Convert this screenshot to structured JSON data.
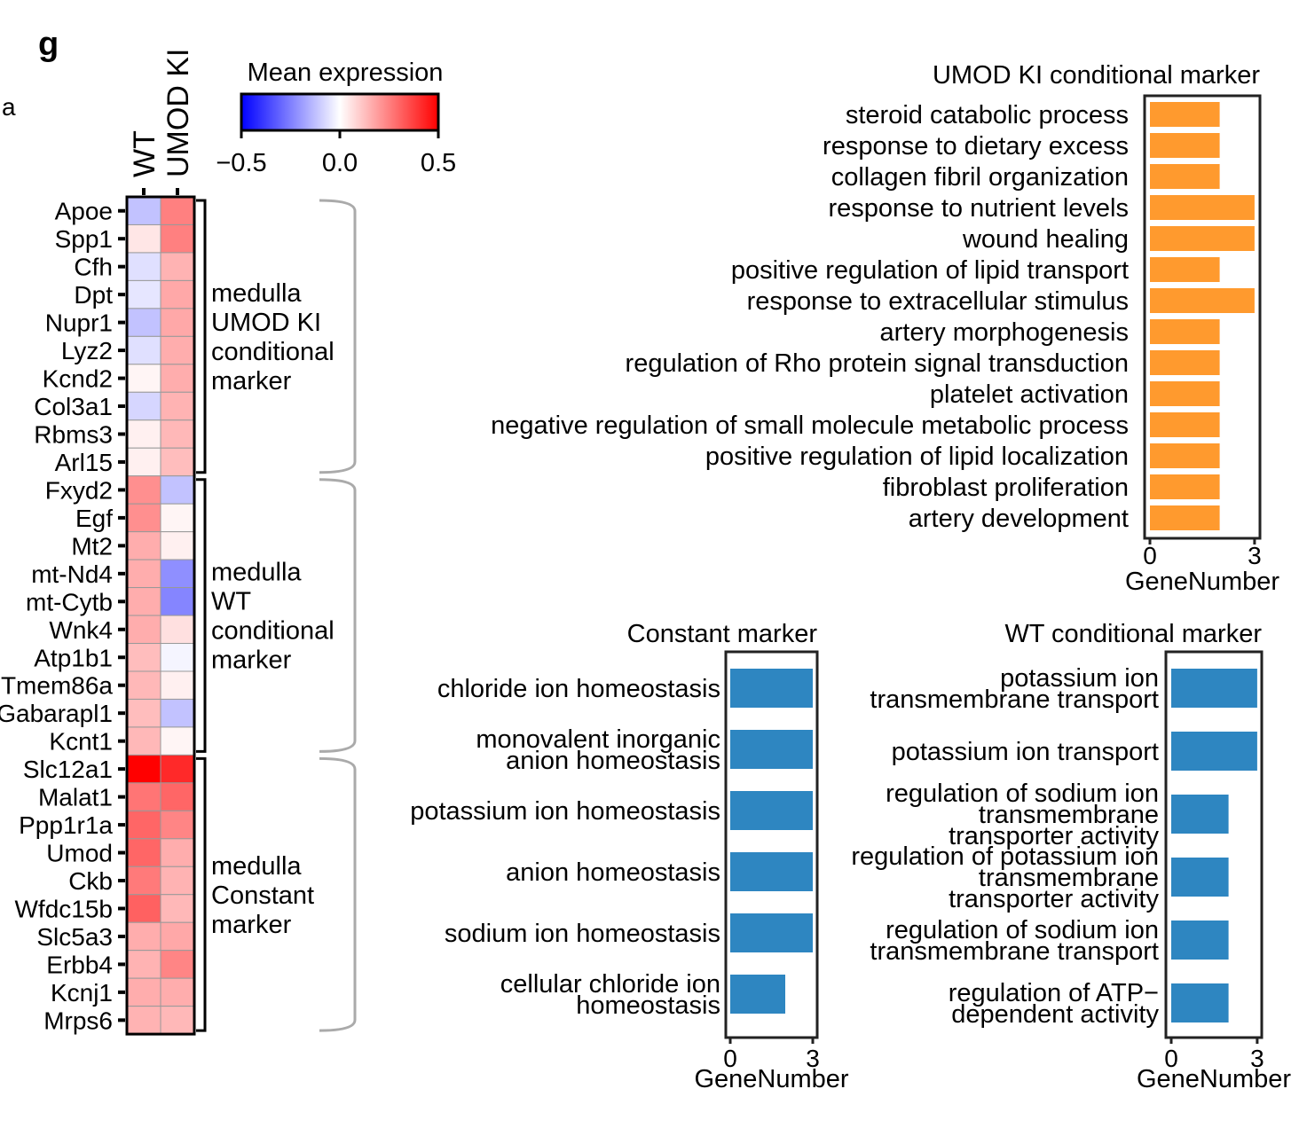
{
  "panel_letter": "g",
  "cut_text": "a",
  "chart_data": [
    {
      "type": "heatmap",
      "columns": [
        "WT",
        "UMOD KI"
      ],
      "colorbar": {
        "title": "Mean expression",
        "range": [
          -0.5,
          0.5
        ],
        "ticks": [
          "−0.5",
          "0.0",
          "0.5"
        ],
        "colors": [
          "#0000ff",
          "#ffffff",
          "#ff0000"
        ]
      },
      "rows": [
        {
          "gene": "Apoe",
          "values": [
            -0.12,
            0.25
          ]
        },
        {
          "gene": "Spp1",
          "values": [
            0.05,
            0.25
          ]
        },
        {
          "gene": "Cfh",
          "values": [
            -0.06,
            0.15
          ]
        },
        {
          "gene": "Dpt",
          "values": [
            -0.05,
            0.17
          ]
        },
        {
          "gene": "Nupr1",
          "values": [
            -0.12,
            0.17
          ]
        },
        {
          "gene": "Lyz2",
          "values": [
            -0.06,
            0.16
          ]
        },
        {
          "gene": "Kcnd2",
          "values": [
            0.02,
            0.16
          ]
        },
        {
          "gene": "Col3a1",
          "values": [
            -0.08,
            0.15
          ]
        },
        {
          "gene": "Rbms3",
          "values": [
            0.03,
            0.14
          ]
        },
        {
          "gene": "Arl15",
          "values": [
            0.03,
            0.13
          ]
        },
        {
          "gene": "Fxyd2",
          "values": [
            0.22,
            -0.12
          ]
        },
        {
          "gene": "Egf",
          "values": [
            0.22,
            0.02
          ]
        },
        {
          "gene": "Mt2",
          "values": [
            0.16,
            0.03
          ]
        },
        {
          "gene": "mt-Nd4",
          "values": [
            0.16,
            -0.22
          ]
        },
        {
          "gene": "mt-Cytb",
          "values": [
            0.16,
            -0.24
          ]
        },
        {
          "gene": "Wnk4",
          "values": [
            0.16,
            0.06
          ]
        },
        {
          "gene": "Atp1b1",
          "values": [
            0.13,
            -0.02
          ]
        },
        {
          "gene": "Tmem86a",
          "values": [
            0.14,
            0.03
          ]
        },
        {
          "gene": "Gabarapl1",
          "values": [
            0.13,
            -0.12
          ]
        },
        {
          "gene": "Kcnt1",
          "values": [
            0.14,
            0.02
          ]
        },
        {
          "gene": "Slc12a1",
          "values": [
            0.5,
            0.42
          ]
        },
        {
          "gene": "Malat1",
          "values": [
            0.27,
            0.3
          ]
        },
        {
          "gene": "Ppp1r1a",
          "values": [
            0.3,
            0.24
          ]
        },
        {
          "gene": "Umod",
          "values": [
            0.3,
            0.16
          ]
        },
        {
          "gene": "Ckb",
          "values": [
            0.26,
            0.15
          ]
        },
        {
          "gene": "Wfdc15b",
          "values": [
            0.31,
            0.14
          ]
        },
        {
          "gene": "Slc5a3",
          "values": [
            0.16,
            0.17
          ]
        },
        {
          "gene": "Erbb4",
          "values": [
            0.15,
            0.24
          ]
        },
        {
          "gene": "Kcnj1",
          "values": [
            0.16,
            0.16
          ]
        },
        {
          "gene": "Mrps6",
          "values": [
            0.15,
            0.14
          ]
        }
      ],
      "groups": [
        {
          "lines": [
            "medulla",
            "UMOD KI",
            "conditional",
            "marker"
          ],
          "rows": 10
        },
        {
          "lines": [
            "medulla",
            "WT",
            "conditional",
            "marker"
          ],
          "rows": 10
        },
        {
          "lines": [
            "medulla",
            "Constant",
            "marker"
          ],
          "rows": 10
        }
      ]
    },
    {
      "type": "bar",
      "orientation": "horizontal",
      "title": "UMOD KI conditional marker",
      "xlabel": "GeneNumber",
      "xticks": [
        "0",
        "3"
      ],
      "xlim": [
        0,
        3.1
      ],
      "color": "#ff9a2e",
      "categories": [
        [
          "steroid catabolic process"
        ],
        [
          "response to dietary excess"
        ],
        [
          "collagen fibril organization"
        ],
        [
          "response to nutrient levels"
        ],
        [
          "wound healing"
        ],
        [
          "positive regulation of lipid transport"
        ],
        [
          "response to extracellular stimulus"
        ],
        [
          "artery morphogenesis"
        ],
        [
          "regulation of Rho protein signal transduction"
        ],
        [
          "platelet activation"
        ],
        [
          "negative regulation of small molecule metabolic process"
        ],
        [
          "positive regulation of lipid localization"
        ],
        [
          "fibroblast proliferation"
        ],
        [
          "artery development"
        ]
      ],
      "values": [
        2,
        2,
        2,
        3,
        3,
        2,
        3,
        2,
        2,
        2,
        2,
        2,
        2,
        2
      ]
    },
    {
      "type": "bar",
      "orientation": "horizontal",
      "title": "Constant marker",
      "xlabel": "GeneNumber",
      "xticks": [
        "0",
        "3"
      ],
      "xlim": [
        0,
        3.1
      ],
      "color": "#2e86c1",
      "categories": [
        [
          "chloride ion homeostasis"
        ],
        [
          "monovalent inorganic",
          "anion homeostasis"
        ],
        [
          "potassium ion homeostasis"
        ],
        [
          "anion homeostasis"
        ],
        [
          "sodium ion homeostasis"
        ],
        [
          "cellular chloride ion",
          "homeostasis"
        ]
      ],
      "values": [
        3,
        3,
        3,
        3,
        3,
        2
      ]
    },
    {
      "type": "bar",
      "orientation": "horizontal",
      "title": "WT conditional marker",
      "xlabel": "GeneNumber",
      "xticks": [
        "0",
        "3"
      ],
      "xlim": [
        0,
        3.1
      ],
      "color": "#2e86c1",
      "categories": [
        [
          "potassium ion",
          "transmembrane transport"
        ],
        [
          "potassium ion transport"
        ],
        [
          "regulation of sodium ion",
          "transmembrane",
          "transporter activity"
        ],
        [
          "regulation of potassium ion",
          "transmembrane",
          "transporter activity"
        ],
        [
          "regulation of sodium ion",
          "transmembrane transport"
        ],
        [
          "regulation of ATP−",
          "dependent activity"
        ]
      ],
      "values": [
        3,
        3,
        2,
        2,
        2,
        2
      ]
    }
  ]
}
